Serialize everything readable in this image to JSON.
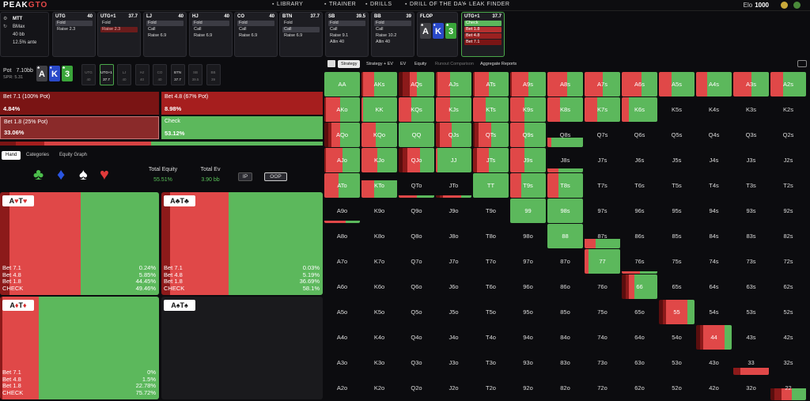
{
  "brand": {
    "logo_text": "PEAK",
    "logo_accent": "GTO"
  },
  "nav": [
    {
      "id": "library",
      "icon": "grid-icon",
      "label": "LIBRARY"
    },
    {
      "id": "trainer",
      "icon": "controller-icon",
      "label": "TRAINER"
    },
    {
      "id": "drills",
      "icon": "drills-icon",
      "label": "DRILLS"
    },
    {
      "id": "drill-of-the-day",
      "icon": "target-icon",
      "label": "DRILL OF THE DAY"
    },
    {
      "id": "leak-finder",
      "icon": "search-icon",
      "label": "LEAK FINDER"
    }
  ],
  "elo": {
    "label": "Elo",
    "value": "1000"
  },
  "game": {
    "type": "MTT",
    "blinds": "BMax",
    "stack": "40 bb",
    "ante": "12.5% ante"
  },
  "positions": [
    {
      "name": "UTG",
      "stack": "40",
      "actions": [
        {
          "label": "Fold",
          "state": "sel"
        },
        {
          "label": "Raise 2.3",
          "state": ""
        }
      ]
    },
    {
      "name": "UTG+1",
      "stack": "37.7",
      "actions": [
        {
          "label": "Fold",
          "state": ""
        },
        {
          "label": "Raise 2.3",
          "state": "red"
        }
      ]
    },
    {
      "name": "LJ",
      "stack": "40",
      "actions": [
        {
          "label": "Fold",
          "state": "sel"
        },
        {
          "label": "Call",
          "state": ""
        },
        {
          "label": "Raise 6.9",
          "state": ""
        }
      ]
    },
    {
      "name": "HJ",
      "stack": "40",
      "actions": [
        {
          "label": "Fold",
          "state": "sel"
        },
        {
          "label": "Call",
          "state": ""
        },
        {
          "label": "Raise 6.9",
          "state": ""
        }
      ]
    },
    {
      "name": "CO",
      "stack": "40",
      "actions": [
        {
          "label": "Fold",
          "state": "sel"
        },
        {
          "label": "Call",
          "state": ""
        },
        {
          "label": "Raise 6.9",
          "state": ""
        }
      ]
    },
    {
      "name": "BTN",
      "stack": "37.7",
      "actions": [
        {
          "label": "Fold",
          "state": ""
        },
        {
          "label": "Call",
          "state": "sel"
        },
        {
          "label": "Raise 6.9",
          "state": ""
        }
      ]
    },
    {
      "name": "SB",
      "stack": "39.5",
      "actions": [
        {
          "label": "Fold",
          "state": "sel"
        },
        {
          "label": "Call",
          "state": ""
        },
        {
          "label": "Raise 9.1",
          "state": ""
        },
        {
          "label": "Allin 40",
          "state": ""
        }
      ]
    },
    {
      "name": "BB",
      "stack": "39",
      "actions": [
        {
          "label": "Fold",
          "state": "sel"
        },
        {
          "label": "Call",
          "state": ""
        },
        {
          "label": "Raise 10.2",
          "state": ""
        },
        {
          "label": "Allin 40",
          "state": ""
        }
      ]
    }
  ],
  "flop": {
    "label": "FLOP",
    "cards": [
      {
        "rank": "A",
        "suit": "♣",
        "color": "#3f3f44"
      },
      {
        "rank": "K",
        "suit": "♦",
        "color": "#2a49c9"
      },
      {
        "rank": "3",
        "suit": "♣",
        "color": "#3aa53a"
      }
    ]
  },
  "current": {
    "name": "UTG+1",
    "stack": "37.7",
    "actions": [
      {
        "label": "Check",
        "color": "#5cb85c"
      },
      {
        "label": "Bet 1.8",
        "color": "#b53030"
      },
      {
        "label": "Bet 4.8",
        "color": "#9a2121"
      },
      {
        "label": "Bet 7.1",
        "color": "#7a1515"
      }
    ]
  },
  "pot": {
    "label": "Pot",
    "value": "7.10bb",
    "spr_label": "SPR:",
    "spr": "5.31"
  },
  "pot_board": [
    {
      "rank": "A",
      "suit": "♣",
      "color": "#3f3f44"
    },
    {
      "rank": "K",
      "suit": "♦",
      "color": "#2a49c9"
    },
    {
      "rank": "3",
      "suit": "♣",
      "color": "#3aa53a"
    }
  ],
  "pos_buttons": [
    {
      "name": "UTG",
      "stack": "40",
      "state": ""
    },
    {
      "name": "UTG+1",
      "stack": "37.7",
      "state": "act"
    },
    {
      "name": "LJ",
      "stack": "40",
      "state": ""
    },
    {
      "name": "HJ",
      "stack": "40",
      "state": ""
    },
    {
      "name": "CO",
      "stack": "40",
      "state": ""
    },
    {
      "name": "BTN",
      "stack": "37.7",
      "state": "hi"
    },
    {
      "name": "SB",
      "stack": "39.5",
      "state": ""
    },
    {
      "name": "BB",
      "stack": "39",
      "state": ""
    }
  ],
  "bet_options": [
    {
      "label": "Bet 7.1 (100% Pot)",
      "value": "4.84%",
      "color": "#7a1414"
    },
    {
      "label": "Bet 4.8 (67% Pot)",
      "value": "8.98%",
      "color": "#a61e1e"
    },
    {
      "label": "Bet 1.8 (25% Pot)",
      "value": "33.06%",
      "color": "#8a2a2a"
    },
    {
      "label": "Check",
      "value": "53.12%",
      "color": "#5cb85c"
    }
  ],
  "freq_bar": [
    {
      "pct": 4.84,
      "color": "#7a1414"
    },
    {
      "pct": 8.98,
      "color": "#a61e1e"
    },
    {
      "pct": 33.06,
      "color": "#d84343"
    },
    {
      "pct": 53.12,
      "color": "#5cb85c"
    }
  ],
  "hand_tabs": [
    "Hand",
    "Categories",
    "Equity Graph"
  ],
  "suit_filters": [
    {
      "glyph": "♣",
      "color": "#4cbf4c"
    },
    {
      "glyph": "♦",
      "color": "#2a55e0"
    },
    {
      "glyph": "♠",
      "color": "#ffffff"
    },
    {
      "glyph": "♥",
      "color": "#e03a3a"
    }
  ],
  "equity": {
    "total_equity_label": "Total Equity",
    "total_equity": "55.51%",
    "total_ev_label": "Total Ev",
    "total_ev": "3.90 bb"
  },
  "player_toggle": {
    "ip": "IP",
    "oop": "OOP"
  },
  "combos": [
    {
      "rank1": "A",
      "suit1": "♥",
      "rank2": "T",
      "suit2": "♥",
      "red": true,
      "rows": [
        [
          "Bet 7.1",
          "0.24%"
        ],
        [
          "Bet 4.8",
          "5.85%"
        ],
        [
          "Bet 1.8",
          "44.45%"
        ],
        [
          "CHECK",
          "49.46%"
        ]
      ],
      "freq": [
        0.24,
        5.85,
        44.45,
        49.46
      ]
    },
    {
      "rank1": "A",
      "suit1": "♣",
      "rank2": "T",
      "suit2": "♣",
      "red": false,
      "rows": [
        [
          "Bet 7.1",
          "0.03%"
        ],
        [
          "Bet 4.8",
          "5.19%"
        ],
        [
          "Bet 1.8",
          "36.69%"
        ],
        [
          "CHECK",
          "58.1%"
        ]
      ],
      "freq": [
        0.03,
        5.19,
        36.69,
        58.1
      ]
    },
    {
      "rank1": "A",
      "suit1": "♦",
      "rank2": "T",
      "suit2": "♦",
      "red": true,
      "rows": [
        [
          "Bet 7.1",
          "0%"
        ],
        [
          "Bet 4.8",
          "1.5%"
        ],
        [
          "Bet 1.8",
          "22.78%"
        ],
        [
          "CHECK",
          "75.72%"
        ]
      ],
      "freq": [
        0,
        1.5,
        22.78,
        75.72
      ]
    },
    {
      "rank1": "A",
      "suit1": "♠",
      "rank2": "T",
      "suit2": "♠",
      "red": false,
      "rows": [],
      "freq": [
        0,
        0,
        0,
        0
      ]
    }
  ],
  "strategy_tabs": [
    {
      "label": "Strategy",
      "state": "on"
    },
    {
      "label": "Strategy + EV",
      "state": ""
    },
    {
      "label": "EV",
      "state": ""
    },
    {
      "label": "Equity",
      "state": ""
    },
    {
      "label": "Runout Comparison",
      "state": "dim"
    },
    {
      "label": "Aggregate Reports",
      "state": ""
    }
  ],
  "ranks": [
    "A",
    "K",
    "Q",
    "J",
    "T",
    "9",
    "8",
    "7",
    "6",
    "5",
    "4",
    "3",
    "2"
  ],
  "action_colors": [
    "#5a0e0e",
    "#8c1a1a",
    "#e04848",
    "#5cb85c"
  ],
  "range_matrix": {
    "AA": {
      "h": 1,
      "f": [
        0,
        0,
        0,
        1
      ]
    },
    "AKs": {
      "h": 1,
      "f": [
        0,
        0.05,
        0.3,
        0.65
      ]
    },
    "AQs": {
      "h": 1,
      "f": [
        0.1,
        0.2,
        0.2,
        0.5
      ]
    },
    "AJs": {
      "h": 1,
      "f": [
        0,
        0.05,
        0.35,
        0.6
      ]
    },
    "ATs": {
      "h": 1,
      "f": [
        0,
        0.05,
        0.4,
        0.55
      ]
    },
    "A9s": {
      "h": 1,
      "f": [
        0,
        0.05,
        0.45,
        0.5
      ]
    },
    "A8s": {
      "h": 1,
      "f": [
        0,
        0,
        0.55,
        0.45
      ]
    },
    "A7s": {
      "h": 1,
      "f": [
        0,
        0,
        0.5,
        0.5
      ]
    },
    "A6s": {
      "h": 1,
      "f": [
        0,
        0,
        0.55,
        0.45
      ]
    },
    "A5s": {
      "h": 1,
      "f": [
        0,
        0,
        0.35,
        0.65
      ]
    },
    "A4s": {
      "h": 1,
      "f": [
        0,
        0,
        0.3,
        0.7
      ]
    },
    "A3s": {
      "h": 1,
      "f": [
        0,
        0,
        0.5,
        0.5
      ]
    },
    "A2s": {
      "h": 1,
      "f": [
        0,
        0,
        0.35,
        0.65
      ]
    },
    "AKo": {
      "h": 1,
      "f": [
        0,
        0.05,
        0.4,
        0.55
      ]
    },
    "KK": {
      "h": 1,
      "f": [
        0,
        0,
        0.05,
        0.95
      ]
    },
    "KQs": {
      "h": 1,
      "f": [
        0,
        0,
        0.35,
        0.65
      ]
    },
    "KJs": {
      "h": 1,
      "f": [
        0,
        0,
        0.4,
        0.6
      ]
    },
    "KTs": {
      "h": 1,
      "f": [
        0,
        0,
        0.35,
        0.65
      ]
    },
    "K9s": {
      "h": 1,
      "f": [
        0,
        0,
        0.4,
        0.6
      ]
    },
    "K8s": {
      "h": 1,
      "f": [
        0,
        0,
        0.35,
        0.65
      ]
    },
    "K7s": {
      "h": 1,
      "f": [
        0,
        0,
        0.35,
        0.65
      ]
    },
    "K6s": {
      "h": 1,
      "f": [
        0,
        0,
        0.2,
        0.8
      ]
    },
    "K5s": {
      "h": 0,
      "f": []
    },
    "K4s": {
      "h": 0,
      "f": []
    },
    "K3s": {
      "h": 0,
      "f": []
    },
    "K2s": {
      "h": 0,
      "f": []
    },
    "AQo": {
      "h": 1,
      "f": [
        0.1,
        0.1,
        0.25,
        0.55
      ]
    },
    "KQo": {
      "h": 1,
      "f": [
        0,
        0,
        0.4,
        0.6
      ]
    },
    "QQ": {
      "h": 1,
      "f": [
        0,
        0,
        0,
        1
      ]
    },
    "QJs": {
      "h": 1,
      "f": [
        0,
        0.1,
        0.35,
        0.55
      ]
    },
    "QTs": {
      "h": 1,
      "f": [
        0.05,
        0.1,
        0.35,
        0.5
      ]
    },
    "Q9s": {
      "h": 1,
      "f": [
        0,
        0,
        0.4,
        0.6
      ]
    },
    "Q8s": {
      "h": 0.4,
      "f": [
        0,
        0,
        0.1,
        0.9
      ]
    },
    "Q7s": {
      "h": 0,
      "f": []
    },
    "Q6s": {
      "h": 0,
      "f": []
    },
    "Q5s": {
      "h": 0,
      "f": []
    },
    "Q4s": {
      "h": 0,
      "f": []
    },
    "Q3s": {
      "h": 0,
      "f": []
    },
    "Q2s": {
      "h": 0,
      "f": []
    },
    "AJo": {
      "h": 1,
      "f": [
        0,
        0.05,
        0.45,
        0.5
      ]
    },
    "KJo": {
      "h": 1,
      "f": [
        0,
        0,
        0.45,
        0.55
      ]
    },
    "QJo": {
      "h": 1,
      "f": [
        0.1,
        0.15,
        0.35,
        0.4
      ]
    },
    "JJ": {
      "h": 1,
      "f": [
        0,
        0,
        0.05,
        0.95
      ]
    },
    "JTs": {
      "h": 1,
      "f": [
        0,
        0.1,
        0.35,
        0.55
      ]
    },
    "J9s": {
      "h": 1,
      "f": [
        0,
        0,
        0.4,
        0.6
      ]
    },
    "J8s": {
      "h": 0.15,
      "f": [
        0,
        0,
        0.3,
        0.7
      ]
    },
    "J7s": {
      "h": 0,
      "f": []
    },
    "J6s": {
      "h": 0,
      "f": []
    },
    "J5s": {
      "h": 0,
      "f": []
    },
    "J4s": {
      "h": 0,
      "f": []
    },
    "J3s": {
      "h": 0,
      "f": []
    },
    "J2s": {
      "h": 0,
      "f": []
    },
    "ATo": {
      "h": 1,
      "f": [
        0,
        0,
        0.4,
        0.6
      ]
    },
    "KTo": {
      "h": 0.7,
      "f": [
        0,
        0,
        0.35,
        0.65
      ]
    },
    "QTo": {
      "h": 0.1,
      "f": [
        0,
        0,
        0.5,
        0.5
      ]
    },
    "JTo": {
      "h": 0.1,
      "f": [
        0.1,
        0.1,
        0.5,
        0.3
      ]
    },
    "TT": {
      "h": 1,
      "f": [
        0,
        0,
        0,
        1
      ]
    },
    "T9s": {
      "h": 1,
      "f": [
        0,
        0,
        0.3,
        0.7
      ]
    },
    "T8s": {
      "h": 1,
      "f": [
        0,
        0,
        0.3,
        0.7
      ]
    },
    "T7s": {
      "h": 0,
      "f": []
    },
    "T6s": {
      "h": 0,
      "f": []
    },
    "T5s": {
      "h": 0,
      "f": []
    },
    "T4s": {
      "h": 0,
      "f": []
    },
    "T3s": {
      "h": 0,
      "f": []
    },
    "T2s": {
      "h": 0,
      "f": []
    },
    "A9o": {
      "h": 0.1,
      "f": [
        0,
        0,
        0.6,
        0.4
      ]
    },
    "K9o": {
      "h": 0,
      "f": []
    },
    "Q9o": {
      "h": 0,
      "f": []
    },
    "J9o": {
      "h": 0,
      "f": []
    },
    "T9o": {
      "h": 0,
      "f": []
    },
    "99": {
      "h": 1,
      "f": [
        0,
        0,
        0,
        1
      ]
    },
    "98s": {
      "h": 1,
      "f": [
        0,
        0,
        0,
        1
      ]
    },
    "97s": {
      "h": 0,
      "f": []
    },
    "96s": {
      "h": 0,
      "f": []
    },
    "95s": {
      "h": 0,
      "f": []
    },
    "94s": {
      "h": 0,
      "f": []
    },
    "93s": {
      "h": 0,
      "f": []
    },
    "92s": {
      "h": 0,
      "f": []
    },
    "A8o": {
      "h": 0,
      "f": []
    },
    "K8o": {
      "h": 0,
      "f": []
    },
    "Q8o": {
      "h": 0,
      "f": []
    },
    "J8o": {
      "h": 0,
      "f": []
    },
    "T8o": {
      "h": 0,
      "f": []
    },
    "98o": {
      "h": 0,
      "f": []
    },
    "88": {
      "h": 1,
      "f": [
        0,
        0,
        0,
        1
      ]
    },
    "87s": {
      "h": 0.4,
      "f": [
        0,
        0,
        0.3,
        0.7
      ]
    },
    "86s": {
      "h": 0,
      "f": []
    },
    "85s": {
      "h": 0,
      "f": []
    },
    "84s": {
      "h": 0,
      "f": []
    },
    "83s": {
      "h": 0,
      "f": []
    },
    "82s": {
      "h": 0,
      "f": []
    },
    "A7o": {
      "h": 0,
      "f": []
    },
    "K7o": {
      "h": 0,
      "f": []
    },
    "Q7o": {
      "h": 0,
      "f": []
    },
    "J7o": {
      "h": 0,
      "f": []
    },
    "T7o": {
      "h": 0,
      "f": []
    },
    "97o": {
      "h": 0,
      "f": []
    },
    "87o": {
      "h": 0,
      "f": []
    },
    "77": {
      "h": 1,
      "f": [
        0,
        0,
        0.1,
        0.9
      ]
    },
    "76s": {
      "h": 0.1,
      "f": [
        0,
        0,
        0.5,
        0.5
      ]
    },
    "75s": {
      "h": 0,
      "f": []
    },
    "74s": {
      "h": 0,
      "f": []
    },
    "73s": {
      "h": 0,
      "f": []
    },
    "72s": {
      "h": 0,
      "f": []
    },
    "A6o": {
      "h": 0,
      "f": []
    },
    "K6o": {
      "h": 0,
      "f": []
    },
    "Q6o": {
      "h": 0,
      "f": []
    },
    "J6o": {
      "h": 0,
      "f": []
    },
    "T6o": {
      "h": 0,
      "f": []
    },
    "96o": {
      "h": 0,
      "f": []
    },
    "86o": {
      "h": 0,
      "f": []
    },
    "76o": {
      "h": 0,
      "f": []
    },
    "66": {
      "h": 1,
      "f": [
        0.1,
        0.1,
        0.15,
        0.65
      ]
    },
    "65s": {
      "h": 0,
      "f": []
    },
    "64s": {
      "h": 0,
      "f": []
    },
    "63s": {
      "h": 0,
      "f": []
    },
    "62s": {
      "h": 0,
      "f": []
    },
    "A5o": {
      "h": 0,
      "f": []
    },
    "K5o": {
      "h": 0,
      "f": []
    },
    "Q5o": {
      "h": 0,
      "f": []
    },
    "J5o": {
      "h": 0,
      "f": []
    },
    "T5o": {
      "h": 0,
      "f": []
    },
    "95o": {
      "h": 0,
      "f": []
    },
    "85o": {
      "h": 0,
      "f": []
    },
    "75o": {
      "h": 0,
      "f": []
    },
    "65o": {
      "h": 0,
      "f": []
    },
    "55": {
      "h": 1,
      "f": [
        0.1,
        0.1,
        0.6,
        0.2
      ]
    },
    "54s": {
      "h": 0,
      "f": []
    },
    "53s": {
      "h": 0,
      "f": []
    },
    "52s": {
      "h": 0,
      "f": []
    },
    "A4o": {
      "h": 0,
      "f": []
    },
    "K4o": {
      "h": 0,
      "f": []
    },
    "Q4o": {
      "h": 0,
      "f": []
    },
    "J4o": {
      "h": 0,
      "f": []
    },
    "T4o": {
      "h": 0,
      "f": []
    },
    "94o": {
      "h": 0,
      "f": []
    },
    "84o": {
      "h": 0,
      "f": []
    },
    "74o": {
      "h": 0,
      "f": []
    },
    "64o": {
      "h": 0,
      "f": []
    },
    "54o": {
      "h": 0,
      "f": []
    },
    "44": {
      "h": 1,
      "f": [
        0.1,
        0.1,
        0.6,
        0.2
      ]
    },
    "43s": {
      "h": 0,
      "f": []
    },
    "42s": {
      "h": 0,
      "f": []
    },
    "A3o": {
      "h": 0,
      "f": []
    },
    "K3o": {
      "h": 0,
      "f": []
    },
    "Q3o": {
      "h": 0,
      "f": []
    },
    "J3o": {
      "h": 0,
      "f": []
    },
    "T3o": {
      "h": 0,
      "f": []
    },
    "93o": {
      "h": 0,
      "f": []
    },
    "83o": {
      "h": 0,
      "f": []
    },
    "73o": {
      "h": 0,
      "f": []
    },
    "63o": {
      "h": 0,
      "f": []
    },
    "53o": {
      "h": 0,
      "f": []
    },
    "43o": {
      "h": 0,
      "f": []
    },
    "33": {
      "h": 0.3,
      "f": [
        0,
        0.2,
        0.8,
        0
      ]
    },
    "32s": {
      "h": 0,
      "f": []
    },
    "A2o": {
      "h": 0,
      "f": []
    },
    "K2o": {
      "h": 0,
      "f": []
    },
    "Q2o": {
      "h": 0,
      "f": []
    },
    "J2o": {
      "h": 0,
      "f": []
    },
    "T2o": {
      "h": 0,
      "f": []
    },
    "92o": {
      "h": 0,
      "f": []
    },
    "82o": {
      "h": 0,
      "f": []
    },
    "72o": {
      "h": 0,
      "f": []
    },
    "62o": {
      "h": 0,
      "f": []
    },
    "52o": {
      "h": 0,
      "f": []
    },
    "42o": {
      "h": 0,
      "f": []
    },
    "32o": {
      "h": 0,
      "f": []
    },
    "22": {
      "h": 0.5,
      "f": [
        0.1,
        0.2,
        0.3,
        0.4
      ]
    }
  }
}
